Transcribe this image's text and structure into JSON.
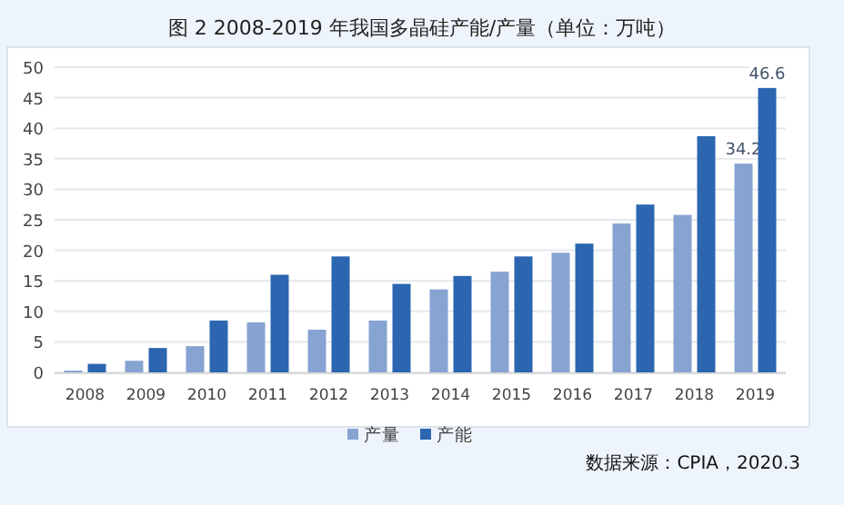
{
  "chart_data": {
    "type": "bar",
    "title": "图 2 2008-2019 年我国多晶硅产能/产量（单位：万吨）",
    "categories": [
      "2008",
      "2009",
      "2010",
      "2011",
      "2012",
      "2013",
      "2014",
      "2015",
      "2016",
      "2017",
      "2018",
      "2019"
    ],
    "series": [
      {
        "name": "产量",
        "color": "#87a3d2",
        "values": [
          0.3,
          1.9,
          4.3,
          8.2,
          7.0,
          8.5,
          13.6,
          16.5,
          19.6,
          24.4,
          25.8,
          34.2
        ],
        "value_labels": [
          null,
          null,
          null,
          null,
          null,
          null,
          null,
          null,
          null,
          null,
          null,
          "34.2"
        ]
      },
      {
        "name": "产能",
        "color": "#2c66b0",
        "values": [
          1.4,
          4.0,
          8.5,
          16.0,
          19.0,
          14.5,
          15.8,
          19.0,
          21.1,
          27.5,
          38.7,
          46.6
        ],
        "value_labels": [
          null,
          null,
          null,
          null,
          null,
          null,
          null,
          null,
          null,
          null,
          null,
          "46.6"
        ]
      }
    ],
    "ylim": [
      0,
      50
    ],
    "yticks": [
      0,
      5,
      10,
      15,
      20,
      25,
      30,
      35,
      40,
      45,
      50
    ],
    "grid": "y",
    "legend": "bottom",
    "annotations": [
      "数据来源：CPIA，2020.3"
    ]
  }
}
